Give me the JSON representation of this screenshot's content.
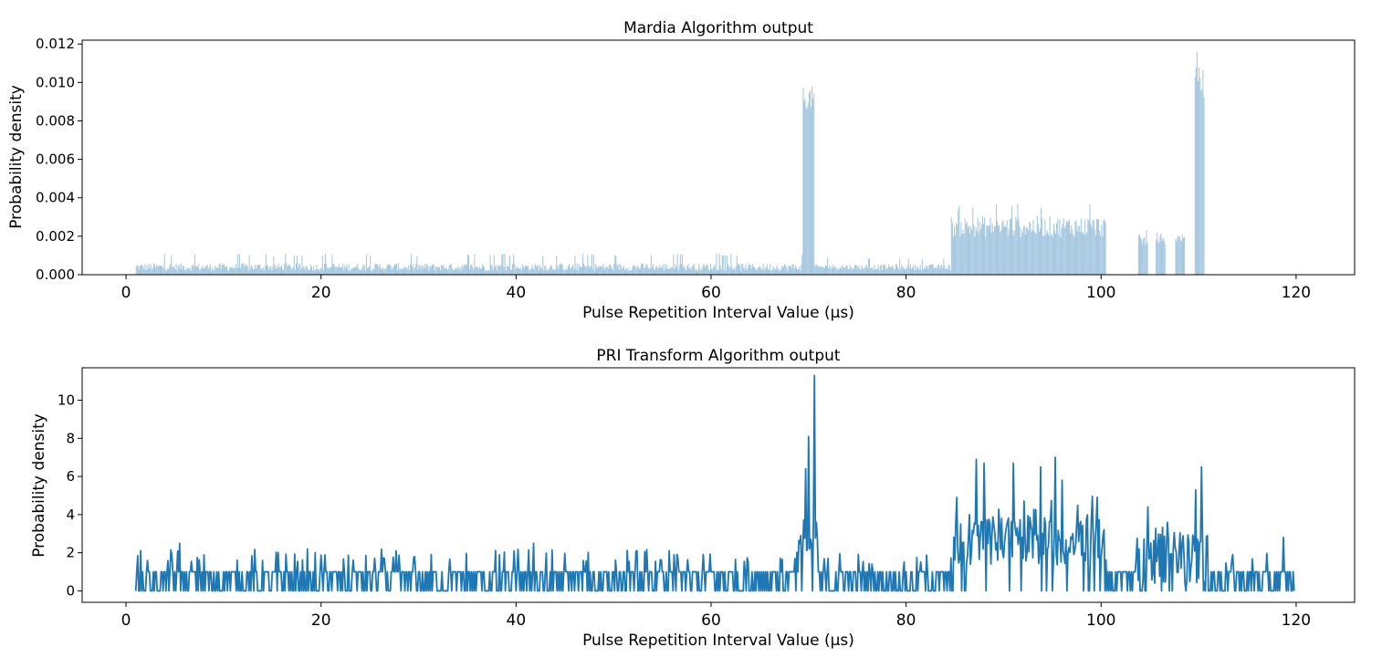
{
  "chart_data": [
    {
      "type": "bar",
      "title": "Mardia Algorithm output",
      "xlabel": "Pulse Repetition Interval Value (µs)",
      "ylabel": "Probability density",
      "xlim": [
        -4.5,
        126
      ],
      "ylim": [
        0,
        0.0122
      ],
      "xticks": [
        0,
        20,
        40,
        60,
        80,
        100,
        120
      ],
      "xtick_labels": [
        "0",
        "20",
        "40",
        "60",
        "80",
        "100",
        "120"
      ],
      "yticks": [
        0,
        0.002,
        0.004,
        0.006,
        0.008,
        0.01,
        0.012
      ],
      "ytick_labels": [
        "0.000",
        "0.002",
        "0.004",
        "0.006",
        "0.008",
        "0.010",
        "0.012"
      ],
      "color": "#a6c8e0",
      "bin_width": 0.1,
      "regions": [
        {
          "from": 1.0,
          "to": 69.4,
          "base": 0.0004,
          "spread": 0.0004,
          "max": 0.0011
        },
        {
          "from": 69.4,
          "to": 70.6,
          "base": 0.0092,
          "spread": 0.0012,
          "max": 0.0104
        },
        {
          "from": 70.6,
          "to": 84.6,
          "base": 0.0004,
          "spread": 0.0003,
          "max": 0.0009
        },
        {
          "from": 84.6,
          "to": 100.5,
          "base": 0.0025,
          "spread": 0.0011,
          "max": 0.0037
        },
        {
          "from": 103.8,
          "to": 104.8,
          "base": 0.0018,
          "spread": 0.0006,
          "max": 0.0024
        },
        {
          "from": 105.6,
          "to": 106.6,
          "base": 0.0018,
          "spread": 0.0004,
          "max": 0.0022
        },
        {
          "from": 107.6,
          "to": 108.6,
          "base": 0.0019,
          "spread": 0.0004,
          "max": 0.0023
        },
        {
          "from": 109.6,
          "to": 110.6,
          "base": 0.01,
          "spread": 0.0016,
          "max": 0.0117
        }
      ]
    },
    {
      "type": "line",
      "title": "PRI Transform Algorithm output",
      "xlabel": "Pulse Repetition Interval Value (µs)",
      "ylabel": "Probability density",
      "xlim": [
        -4.5,
        126
      ],
      "ylim": [
        -0.6,
        11.7
      ],
      "xticks": [
        0,
        20,
        40,
        60,
        80,
        100,
        120
      ],
      "xtick_labels": [
        "0",
        "20",
        "40",
        "60",
        "80",
        "100",
        "120"
      ],
      "yticks": [
        0,
        2,
        4,
        6,
        8,
        10
      ],
      "ytick_labels": [
        "0",
        "2",
        "4",
        "6",
        "8",
        "10"
      ],
      "color": "#1f77b4",
      "x_start": 1.0,
      "x_end": 119.8,
      "step": 0.1,
      "peaks": [
        {
          "x": 5.5,
          "y": 2.5
        },
        {
          "x": 41.8,
          "y": 2.5
        },
        {
          "x": 69.2,
          "y": 2.9
        },
        {
          "x": 69.7,
          "y": 6.4
        },
        {
          "x": 70.0,
          "y": 8.1
        },
        {
          "x": 70.6,
          "y": 11.3
        },
        {
          "x": 85.2,
          "y": 4.9
        },
        {
          "x": 87.2,
          "y": 6.9
        },
        {
          "x": 88.0,
          "y": 6.7
        },
        {
          "x": 91.0,
          "y": 6.7
        },
        {
          "x": 93.8,
          "y": 6.5
        },
        {
          "x": 95.3,
          "y": 7.0
        },
        {
          "x": 96.0,
          "y": 5.8
        },
        {
          "x": 99.6,
          "y": 4.9
        },
        {
          "x": 104.8,
          "y": 4.4
        },
        {
          "x": 106.8,
          "y": 3.6
        },
        {
          "x": 109.7,
          "y": 5.3
        },
        {
          "x": 110.3,
          "y": 6.5
        },
        {
          "x": 118.7,
          "y": 2.8
        }
      ],
      "segments": [
        {
          "from": 1.0,
          "to": 69.0,
          "level": 0.9,
          "max": 2.2
        },
        {
          "from": 69.0,
          "to": 71.0,
          "level": 3.0,
          "max": 5.0
        },
        {
          "from": 71.0,
          "to": 84.8,
          "level": 0.9,
          "max": 2.0
        },
        {
          "from": 84.8,
          "to": 100.4,
          "level": 2.6,
          "max": 5.0
        },
        {
          "from": 100.4,
          "to": 103.5,
          "level": 0.9,
          "max": 2.0
        },
        {
          "from": 103.5,
          "to": 111.0,
          "level": 1.7,
          "max": 3.4
        },
        {
          "from": 111.0,
          "to": 119.8,
          "level": 0.9,
          "max": 2.0
        }
      ]
    }
  ]
}
